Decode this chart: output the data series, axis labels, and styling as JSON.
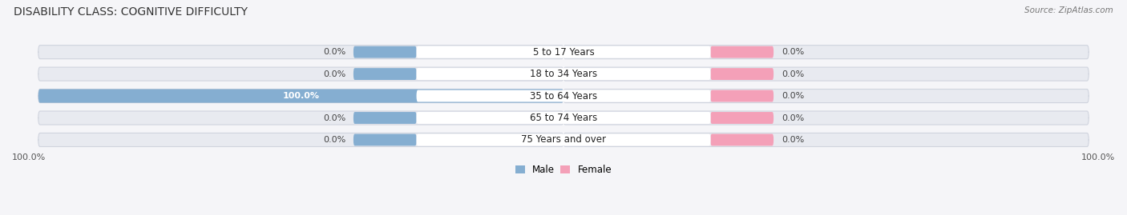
{
  "title": "DISABILITY CLASS: COGNITIVE DIFFICULTY",
  "source": "Source: ZipAtlas.com",
  "categories": [
    "5 to 17 Years",
    "18 to 34 Years",
    "35 to 64 Years",
    "65 to 74 Years",
    "75 Years and over"
  ],
  "male_values": [
    0.0,
    0.0,
    100.0,
    0.0,
    0.0
  ],
  "female_values": [
    0.0,
    0.0,
    0.0,
    0.0,
    0.0
  ],
  "male_color": "#85aed1",
  "female_color": "#f4a0b8",
  "bar_bg_color": "#e8eaf0",
  "bar_bg_stroke": "#d0d4de",
  "label_bg": "#ffffff",
  "male_label_color": "#ffffff",
  "pct_label_color": "#444444",
  "title_fontsize": 10,
  "label_fontsize": 8,
  "tick_fontsize": 8,
  "background_color": "#f5f5f8"
}
